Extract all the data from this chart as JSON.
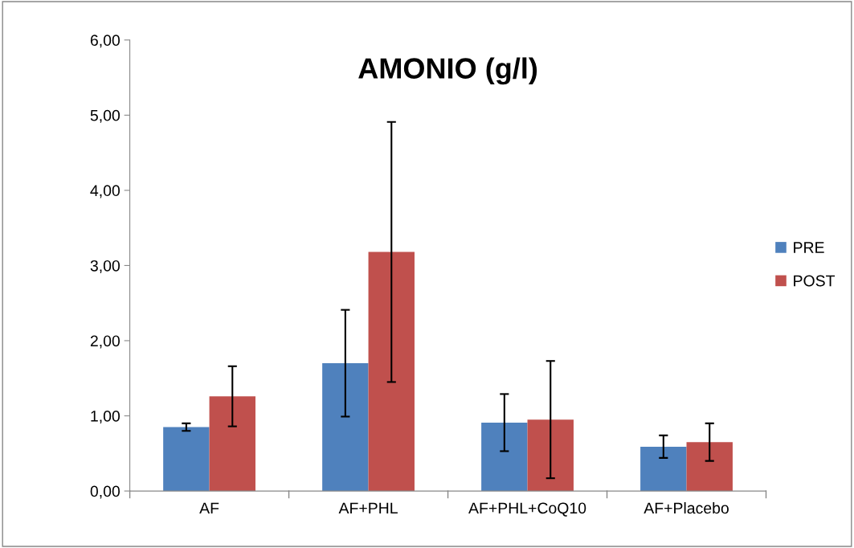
{
  "chart_data": {
    "type": "bar",
    "title": "AMONIO (g/l)",
    "categories": [
      "AF",
      "AF+PHL",
      "AF+PHL+CoQ10",
      "AF+Placebo"
    ],
    "series": [
      {
        "name": "PRE",
        "color": "#4f81bd",
        "values": [
          0.85,
          1.7,
          0.91,
          0.59
        ],
        "errors": [
          0.05,
          0.71,
          0.38,
          0.15
        ]
      },
      {
        "name": "POST",
        "color": "#c0504d",
        "values": [
          1.26,
          3.18,
          0.95,
          0.65
        ],
        "errors": [
          0.4,
          1.73,
          0.78,
          0.25
        ]
      }
    ],
    "ylim": [
      0,
      6
    ],
    "yticks": [
      {
        "value": 0,
        "label": "0,00"
      },
      {
        "value": 1,
        "label": "1,00"
      },
      {
        "value": 2,
        "label": "2,00"
      },
      {
        "value": 3,
        "label": "3,00"
      },
      {
        "value": 4,
        "label": "4,00"
      },
      {
        "value": 5,
        "label": "5,00"
      },
      {
        "value": 6,
        "label": "6,00"
      }
    ],
    "grid": false,
    "legend": "right"
  }
}
